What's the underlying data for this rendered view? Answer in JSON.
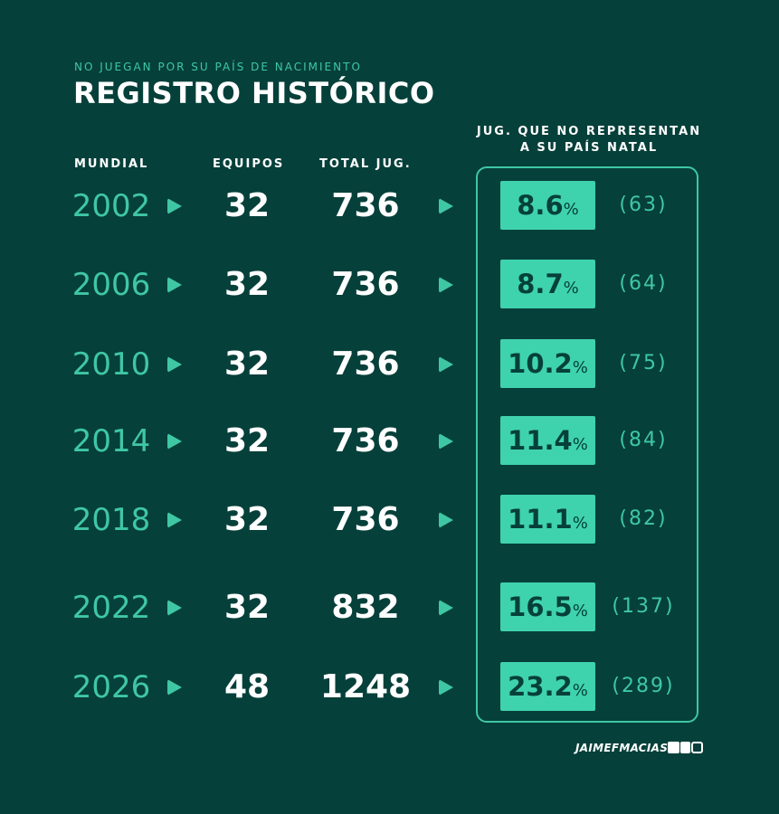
{
  "header": {
    "subtitle": "NO JUEGAN POR SU PAÍS DE NACIMIENTO",
    "title": "REGISTRO HISTÓRICO"
  },
  "columns": {
    "mundial": "MUNDIAL",
    "equipos": "EQUIPOS",
    "total": "TOTAL JUG.",
    "jug_line1": "JUG. QUE NO REPRESENTAN",
    "jug_line2": "A SU PAÍS NATAL"
  },
  "rows": [
    {
      "year": "2002",
      "teams": "32",
      "total": "736",
      "pct": "8.6",
      "pct_sym": "%",
      "count": "(63)"
    },
    {
      "year": "2006",
      "teams": "32",
      "total": "736",
      "pct": "8.7",
      "pct_sym": "%",
      "count": "(64)"
    },
    {
      "year": "2010",
      "teams": "32",
      "total": "736",
      "pct": "10.2",
      "pct_sym": "%",
      "count": "(75)"
    },
    {
      "year": "2014",
      "teams": "32",
      "total": "736",
      "pct": "11.4",
      "pct_sym": "%",
      "count": "(84)"
    },
    {
      "year": "2018",
      "teams": "32",
      "total": "736",
      "pct": "11.1",
      "pct_sym": "%",
      "count": "(82)"
    },
    {
      "year": "2022",
      "teams": "32",
      "total": "832",
      "pct": "16.5",
      "pct_sym": "%",
      "count": "(137)"
    },
    {
      "year": "2026",
      "teams": "48",
      "total": "1248",
      "pct": "23.2",
      "pct_sym": "%",
      "count": "(289)"
    }
  ],
  "footer": {
    "author": "JAIMEFMACIAS",
    "icons": [
      "twitter-icon",
      "facebook-icon",
      "instagram-icon"
    ]
  },
  "colors": {
    "background": "#06403a",
    "accent": "#3fc7a4",
    "highlight_box": "#3fd3ad",
    "text": "#ffffff"
  }
}
